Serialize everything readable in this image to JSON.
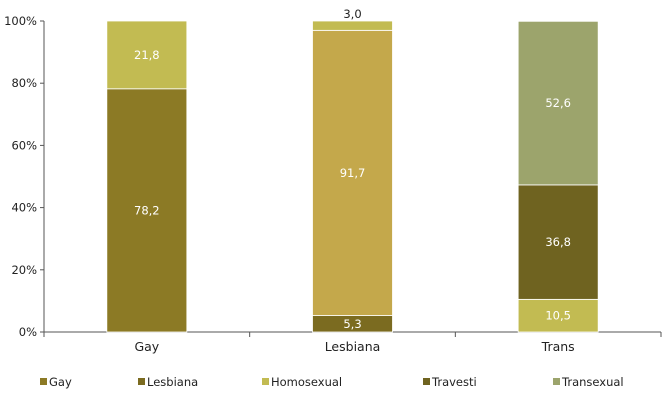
{
  "chart_data": {
    "type": "bar",
    "stacked": true,
    "categories": [
      "Gay",
      "Lesbiana",
      "Trans"
    ],
    "series": [
      {
        "name": "Gay",
        "color": "#8c7a25",
        "values": [
          78.2,
          0,
          0
        ]
      },
      {
        "name": "Lesbiana",
        "color": "#7b6b20",
        "values": [
          0,
          5.3,
          0
        ]
      },
      {
        "name": "Homosexual",
        "color": "#c2bb52",
        "values": [
          21.8,
          3.0,
          10.5
        ]
      },
      {
        "name": "Travesti",
        "color": "#6f6320",
        "values": [
          0,
          0,
          36.8
        ]
      },
      {
        "name": "Transexual",
        "color": "#9ca46c",
        "values": [
          0,
          0,
          52.6
        ]
      }
    ],
    "stack_order": [
      [
        "Gay",
        "Homosexual"
      ],
      [
        "Lesbiana",
        "Lesbiana_alt",
        "Homosexual"
      ],
      [
        "Homosexual",
        "Travesti",
        "Transexual"
      ]
    ],
    "segments": [
      {
        "category": "Gay",
        "name": "Gay",
        "value": 78.2,
        "label": "78,2",
        "color": "#8c7a25",
        "label_color": "#ffffff"
      },
      {
        "category": "Gay",
        "name": "Homosexual",
        "value": 21.8,
        "label": "21,8",
        "color": "#c2bb52",
        "label_color": "#ffffff"
      },
      {
        "category": "Lesbiana",
        "name": "Lesbiana",
        "value": 5.3,
        "label": "5,3",
        "color": "#7b6b20",
        "label_color": "#ffffff"
      },
      {
        "category": "Lesbiana",
        "name": "Lesbiana",
        "value": 91.7,
        "label": "91,7",
        "color": "#c4a84b",
        "label_color": "#ffffff"
      },
      {
        "category": "Lesbiana",
        "name": "Homosexual",
        "value": 3.0,
        "label": "3,0",
        "color": "#c2bb52",
        "label_color": "#222222",
        "label_above": true
      },
      {
        "category": "Trans",
        "name": "Homosexual",
        "value": 10.5,
        "label": "10,5",
        "color": "#c2bb52",
        "label_color": "#ffffff"
      },
      {
        "category": "Trans",
        "name": "Travesti",
        "value": 36.8,
        "label": "36,8",
        "color": "#6f6320",
        "label_color": "#ffffff"
      },
      {
        "category": "Trans",
        "name": "Transexual",
        "value": 52.6,
        "label": "52,6",
        "color": "#9ca46c",
        "label_color": "#ffffff"
      }
    ],
    "ylim": [
      0,
      100
    ],
    "yticks": [
      "0%",
      "20%",
      "40%",
      "60%",
      "80%",
      "100%"
    ],
    "grid": false,
    "legend": {
      "position": "bottom",
      "entries": [
        {
          "label": "Gay",
          "color": "#8c7a25"
        },
        {
          "label": "Lesbiana",
          "color": "#7b6b20"
        },
        {
          "label": "Homosexual",
          "color": "#c2bb52"
        },
        {
          "label": "Travesti",
          "color": "#6f6320"
        },
        {
          "label": "Transexual",
          "color": "#9ca46c"
        }
      ]
    }
  }
}
